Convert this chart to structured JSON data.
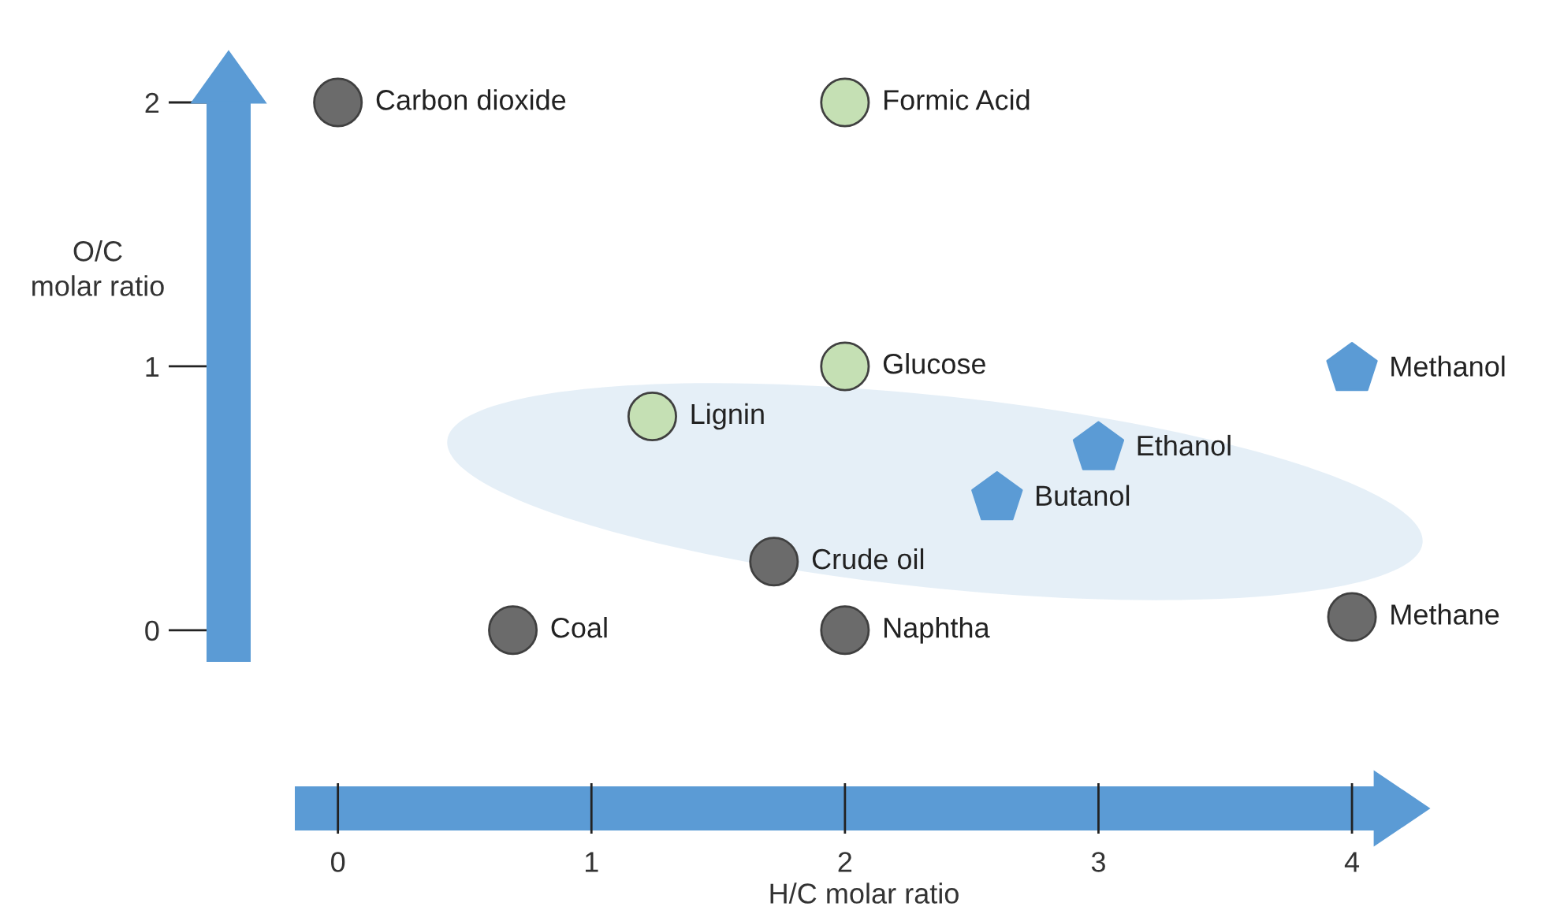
{
  "chart_data": {
    "type": "scatter",
    "xlabel": "H/C molar ratio",
    "ylabel": "O/C\nmolar ratio",
    "xlim": [
      -0.17,
      4.09
    ],
    "ylim": [
      -0.12,
      2.0
    ],
    "xticks": [
      0,
      1,
      2,
      3,
      4
    ],
    "yticks": [
      0,
      1,
      2
    ],
    "grid": false,
    "legend": false,
    "series": [
      {
        "type": "scatter",
        "marker": "circle",
        "color": "#6b6b6b",
        "x": [
          0,
          0.69,
          2,
          1.72,
          4
        ],
        "values": [
          2,
          0,
          0,
          0.26,
          0.05
        ]
      },
      {
        "type": "scatter",
        "marker": "circle",
        "color": "#c5e0b4",
        "x": [
          2,
          2,
          1.24
        ],
        "values": [
          2,
          1,
          0.81
        ]
      },
      {
        "type": "scatter",
        "color": "#5b9bd5",
        "x": [
          4,
          3,
          2.6
        ],
        "values": [
          0.99,
          0.69,
          0.5
        ]
      }
    ],
    "annotations": [
      {
        "text": "Carbon dioxide",
        "x": 0,
        "y": 2
      },
      {
        "text": "Formic Acid",
        "x": 2,
        "y": 2
      },
      {
        "text": "Glucose",
        "x": 2,
        "y": 1
      },
      {
        "text": "Lignin",
        "x": 1.24,
        "y": 0.81
      },
      {
        "text": "Methanol",
        "x": 4,
        "y": 0.99
      },
      {
        "text": "Ethanol",
        "x": 3,
        "y": 0.69
      },
      {
        "text": "Butanol",
        "x": 2.6,
        "y": 0.5
      },
      {
        "text": "Crude oil",
        "x": 1.72,
        "y": 0.26
      },
      {
        "text": "Coal",
        "x": 0.69,
        "y": 0
      },
      {
        "text": "Naphtha",
        "x": 2,
        "y": 0
      },
      {
        "text": "Methane",
        "x": 4,
        "y": 0.05
      }
    ]
  }
}
